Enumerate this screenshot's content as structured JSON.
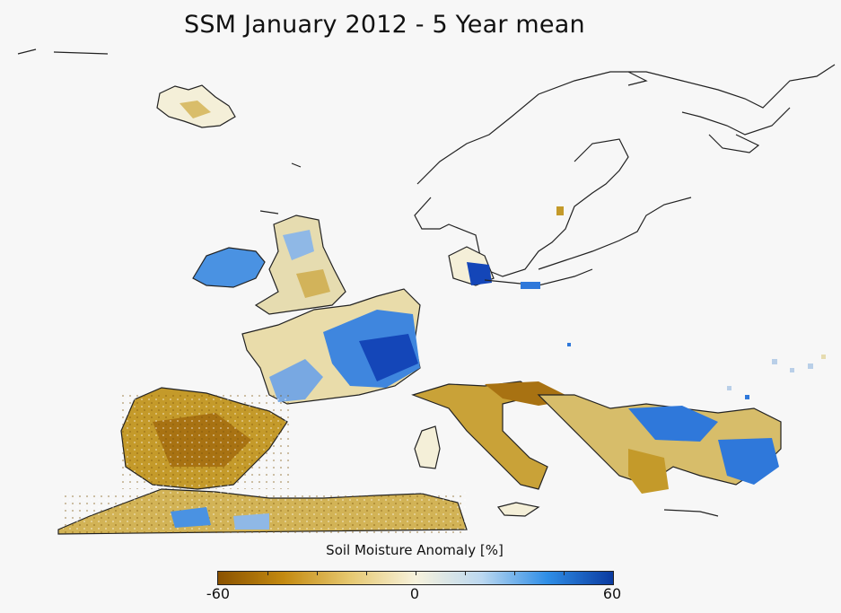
{
  "title": "SSM January 2012 - 5 Year mean",
  "legend": {
    "label": "Soil Moisture Anomaly [%]",
    "ticks": [
      "-60",
      "0",
      "60"
    ],
    "min": -60,
    "max": 60,
    "gradient": [
      "#8a5200",
      "#c48a10",
      "#e6c870",
      "#f7f2dc",
      "#bcd8f0",
      "#2f8ee6",
      "#0a3aa0"
    ]
  },
  "colors": {
    "dry": "#c49a2a",
    "very_dry": "#a87212",
    "wet": "#3a86e0",
    "very_wet": "#1446b8",
    "neutral": "#efe8cc",
    "coastline": "#222222"
  }
}
